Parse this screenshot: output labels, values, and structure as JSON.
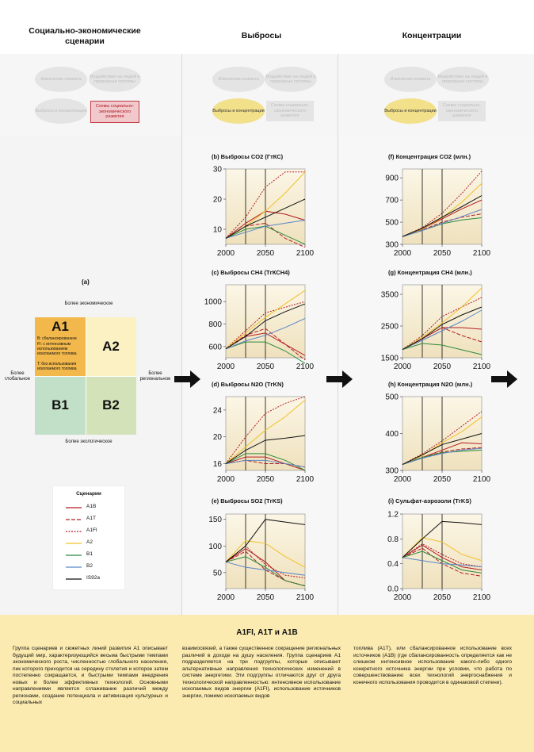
{
  "headers": {
    "col1": "Социально-экономические сценарии",
    "col2": "Выбросы",
    "col3": "Концентрации"
  },
  "nodes": {
    "climate_change": "Изменение климата",
    "impacts": "Воздействие на людей и природные системы",
    "emissions_conc": "Выбросы и концентрации",
    "socio_dev": "Схемы социально-экономического развития"
  },
  "quadrant": {
    "label": "(а)",
    "a1": "A1",
    "a1_desc": [
      "B: сбалансированное",
      "FI: с интенсивным использованием ископаемого топлива",
      "T: без использования ископаемого топлива"
    ],
    "a2": "A2",
    "b1": "B1",
    "b2": "B2",
    "top": "Более экономическое",
    "bottom": "Более экологическое",
    "left": "Более глобальное",
    "right": "Более региональное",
    "colors": {
      "a1": "#f2b84b",
      "a2": "#fbf1c2",
      "b1": "#c2dfc7",
      "b2": "#d3e2b9"
    }
  },
  "legend": {
    "title": "Сценарии",
    "items": [
      {
        "name": "A1B",
        "color": "#b21e23",
        "dash": ""
      },
      {
        "name": "A1T",
        "color": "#b21e23",
        "dash": "5,2"
      },
      {
        "name": "A1FI",
        "color": "#b21e23",
        "dash": "2,1.5"
      },
      {
        "name": "A2",
        "color": "#f2c02a",
        "dash": ""
      },
      {
        "name": "B1",
        "color": "#2e8b3a",
        "dash": ""
      },
      {
        "name": "B2",
        "color": "#5b86c8",
        "dash": ""
      },
      {
        "name": "IS92a",
        "color": "#111111",
        "dash": ""
      }
    ]
  },
  "chart_data": [
    {
      "id": "b",
      "type": "line",
      "title": "(b) Выбросы CO2 (ГтКС)",
      "x": [
        2000,
        2025,
        2050,
        2075,
        2100
      ],
      "xticks": [
        2000,
        2050,
        2100
      ],
      "yticks": [
        10,
        20,
        30
      ],
      "ylim": [
        5,
        30
      ],
      "series": [
        {
          "name": "A1B",
          "values": [
            7,
            12,
            16,
            15,
            13
          ]
        },
        {
          "name": "A1T",
          "values": [
            7,
            11,
            12,
            7,
            4
          ]
        },
        {
          "name": "A1FI",
          "values": [
            7,
            14,
            24,
            29,
            29
          ]
        },
        {
          "name": "A2",
          "values": [
            7,
            11,
            16,
            22,
            29
          ]
        },
        {
          "name": "B1",
          "values": [
            7,
            10,
            11,
            8,
            5
          ]
        },
        {
          "name": "B2",
          "values": [
            7,
            9,
            11,
            12,
            13
          ]
        },
        {
          "name": "IS92a",
          "values": [
            7,
            11,
            14,
            17,
            20
          ]
        }
      ]
    },
    {
      "id": "f",
      "type": "line",
      "title": "(f) Концентрация CO2 (млн.)",
      "x": [
        2000,
        2025,
        2050,
        2075,
        2100
      ],
      "xticks": [
        2000,
        2050,
        2100
      ],
      "yticks": [
        300,
        500,
        700,
        900
      ],
      "ylim": [
        300,
        980
      ],
      "series": [
        {
          "name": "A1B",
          "values": [
            370,
            440,
            530,
            620,
            700
          ]
        },
        {
          "name": "A1T",
          "values": [
            370,
            430,
            500,
            545,
            575
          ]
        },
        {
          "name": "A1FI",
          "values": [
            370,
            450,
            580,
            760,
            960
          ]
        },
        {
          "name": "A2",
          "values": [
            370,
            440,
            540,
            680,
            850
          ]
        },
        {
          "name": "B1",
          "values": [
            370,
            425,
            485,
            520,
            540
          ]
        },
        {
          "name": "B2",
          "values": [
            370,
            425,
            490,
            550,
            615
          ]
        },
        {
          "name": "IS92a",
          "values": [
            370,
            445,
            545,
            640,
            740
          ]
        }
      ]
    },
    {
      "id": "c",
      "type": "line",
      "title": "(c) Выбросы CH4 (TгКCH4)",
      "x": [
        2000,
        2025,
        2050,
        2075,
        2100
      ],
      "xticks": [
        2000,
        2050,
        2100
      ],
      "yticks": [
        600,
        800,
        1000
      ],
      "ylim": [
        500,
        1150
      ],
      "series": [
        {
          "name": "A1B",
          "values": [
            580,
            690,
            720,
            620,
            520
          ]
        },
        {
          "name": "A1T",
          "values": [
            580,
            700,
            760,
            620,
            480
          ]
        },
        {
          "name": "A1FI",
          "values": [
            580,
            740,
            900,
            950,
            1000
          ]
        },
        {
          "name": "A2",
          "values": [
            580,
            720,
            860,
            980,
            1100
          ]
        },
        {
          "name": "B1",
          "values": [
            580,
            640,
            640,
            560,
            450
          ]
        },
        {
          "name": "B2",
          "values": [
            580,
            650,
            700,
            770,
            850
          ]
        },
        {
          "name": "IS92a",
          "values": [
            580,
            690,
            830,
            910,
            980
          ]
        }
      ]
    },
    {
      "id": "g",
      "type": "line",
      "title": "(g) Концентрация CH4 (млн.)",
      "x": [
        2000,
        2025,
        2050,
        2075,
        2100
      ],
      "xticks": [
        2000,
        2050,
        2100
      ],
      "yticks": [
        1500,
        2500,
        3500
      ],
      "ylim": [
        1500,
        3800
      ],
      "series": [
        {
          "name": "A1B",
          "values": [
            1760,
            2100,
            2450,
            2450,
            2400
          ]
        },
        {
          "name": "A1T",
          "values": [
            1760,
            2100,
            2450,
            2200,
            2000
          ]
        },
        {
          "name": "A1FI",
          "values": [
            1760,
            2200,
            2800,
            3100,
            3400
          ]
        },
        {
          "name": "A2",
          "values": [
            1760,
            2150,
            2600,
            3100,
            3700
          ]
        },
        {
          "name": "B1",
          "values": [
            1760,
            1950,
            1900,
            1750,
            1600
          ]
        },
        {
          "name": "B2",
          "values": [
            1760,
            2050,
            2350,
            2650,
            3000
          ]
        },
        {
          "name": "IS92a",
          "values": [
            1760,
            2100,
            2550,
            2850,
            3100
          ]
        }
      ]
    },
    {
      "id": "d",
      "type": "line",
      "title": "(d) Выбросы N2O (TгKN)",
      "x": [
        2000,
        2025,
        2050,
        2075,
        2100
      ],
      "xticks": [
        2000,
        2050,
        2100
      ],
      "yticks": [
        16,
        20,
        24
      ],
      "ylim": [
        15,
        26
      ],
      "series": [
        {
          "name": "A1B",
          "values": [
            16,
            17,
            17,
            16,
            15
          ]
        },
        {
          "name": "A1T",
          "values": [
            16,
            16.5,
            16,
            16,
            15.5
          ]
        },
        {
          "name": "A1FI",
          "values": [
            16,
            20,
            23.5,
            25,
            26
          ]
        },
        {
          "name": "A2",
          "values": [
            16,
            18.5,
            21,
            23,
            25.5
          ]
        },
        {
          "name": "B1",
          "values": [
            16,
            17.5,
            17.5,
            16.5,
            15
          ]
        },
        {
          "name": "B2",
          "values": [
            16,
            16.5,
            16.5,
            16,
            15.5
          ]
        },
        {
          "name": "IS92a",
          "values": [
            16,
            18,
            19.5,
            19.8,
            20.2
          ]
        }
      ]
    },
    {
      "id": "h",
      "type": "line",
      "title": "(h) Концентрация N2O (млн.)",
      "x": [
        2000,
        2025,
        2050,
        2075,
        2100
      ],
      "xticks": [
        2000,
        2050,
        2100
      ],
      "yticks": [
        300,
        400,
        500
      ],
      "ylim": [
        300,
        500
      ],
      "series": [
        {
          "name": "A1B",
          "values": [
            316,
            335,
            355,
            375,
            372
          ]
        },
        {
          "name": "A1T",
          "values": [
            316,
            335,
            350,
            358,
            362
          ]
        },
        {
          "name": "A1FI",
          "values": [
            316,
            345,
            380,
            420,
            460
          ]
        },
        {
          "name": "A2",
          "values": [
            316,
            340,
            375,
            405,
            445
          ]
        },
        {
          "name": "B1",
          "values": [
            316,
            335,
            348,
            352,
            355
          ]
        },
        {
          "name": "B2",
          "values": [
            316,
            333,
            346,
            355,
            360
          ]
        },
        {
          "name": "IS92a",
          "values": [
            316,
            342,
            370,
            385,
            400
          ]
        }
      ]
    },
    {
      "id": "e",
      "type": "line",
      "title": "(e) Выбросы SO2 (TгKS)",
      "x": [
        2000,
        2025,
        2050,
        2075,
        2100
      ],
      "xticks": [
        2000,
        2050,
        2100
      ],
      "yticks": [
        50,
        100,
        150
      ],
      "ylim": [
        20,
        160
      ],
      "series": [
        {
          "name": "A1B",
          "values": [
            70,
            95,
            70,
            35,
            25
          ]
        },
        {
          "name": "A1T",
          "values": [
            70,
            90,
            55,
            35,
            25
          ]
        },
        {
          "name": "A1FI",
          "values": [
            70,
            100,
            65,
            45,
            40
          ]
        },
        {
          "name": "A2",
          "values": [
            70,
            110,
            105,
            80,
            60
          ]
        },
        {
          "name": "B1",
          "values": [
            70,
            80,
            60,
            35,
            25
          ]
        },
        {
          "name": "B2",
          "values": [
            70,
            60,
            55,
            50,
            45
          ]
        },
        {
          "name": "IS92a",
          "values": [
            70,
            100,
            150,
            145,
            140
          ]
        }
      ]
    },
    {
      "id": "i",
      "type": "line",
      "title": "(i) Сульфат-аэрозоли (TгKS)",
      "x": [
        2000,
        2025,
        2050,
        2075,
        2100
      ],
      "xticks": [
        2000,
        2050,
        2100
      ],
      "yticks": [
        0.0,
        0.4,
        0.8,
        1.2
      ],
      "ylim": [
        0,
        1.2
      ],
      "series": [
        {
          "name": "A1B",
          "values": [
            0.5,
            0.7,
            0.5,
            0.35,
            0.3
          ]
        },
        {
          "name": "A1T",
          "values": [
            0.5,
            0.65,
            0.4,
            0.25,
            0.2
          ]
        },
        {
          "name": "A1FI",
          "values": [
            0.5,
            0.72,
            0.55,
            0.4,
            0.35
          ]
        },
        {
          "name": "A2",
          "values": [
            0.5,
            0.82,
            0.75,
            0.55,
            0.45
          ]
        },
        {
          "name": "B1",
          "values": [
            0.5,
            0.6,
            0.45,
            0.3,
            0.25
          ]
        },
        {
          "name": "B2",
          "values": [
            0.5,
            0.45,
            0.4,
            0.38,
            0.35
          ]
        },
        {
          "name": "IS92a",
          "values": [
            0.5,
            0.8,
            1.08,
            1.06,
            1.03
          ]
        }
      ]
    }
  ],
  "box": {
    "title": "A1FI, A1T и A1B",
    "p1": "Группа сценариев и сюжетных линий развития A1 описывает будущий мир, характеризующийся весьма быстрыми темпами экономического роста, численностью глобального населения, пик которого приходится на середину столетия и которое затем постепенно сокращается, и быстрыми темпами внедрения новых и более эффективных технологий. Основными направлениями является сглаживание различий между регионами, создание потенциала и активизация культурных и социальных",
    "p2": "взаимосвязей, а также существенное сокращение региональных различий в доходе на душу населения. Группа сценариев A1 подразделяется на три подгруппы, которые описывают альтернативные направления технологических изменений в системе энергетики. Эти подгруппы отличаются друг от друга технологической направленностью: интенсивное использование ископаемых видов энергии (A1FI), использование источников энергии, помимо ископаемых видов",
    "p3": "топлива (A1T), или сбалансированное использование всех источников (A1B) (где сбалансированность определяется как не слишком интенсивное использование какого-либо одного конкретного источника энергии при условии, что работа по совершенствованию всех технологий энергоснабжения и конечного использования проводится в одинаковой степени)."
  }
}
